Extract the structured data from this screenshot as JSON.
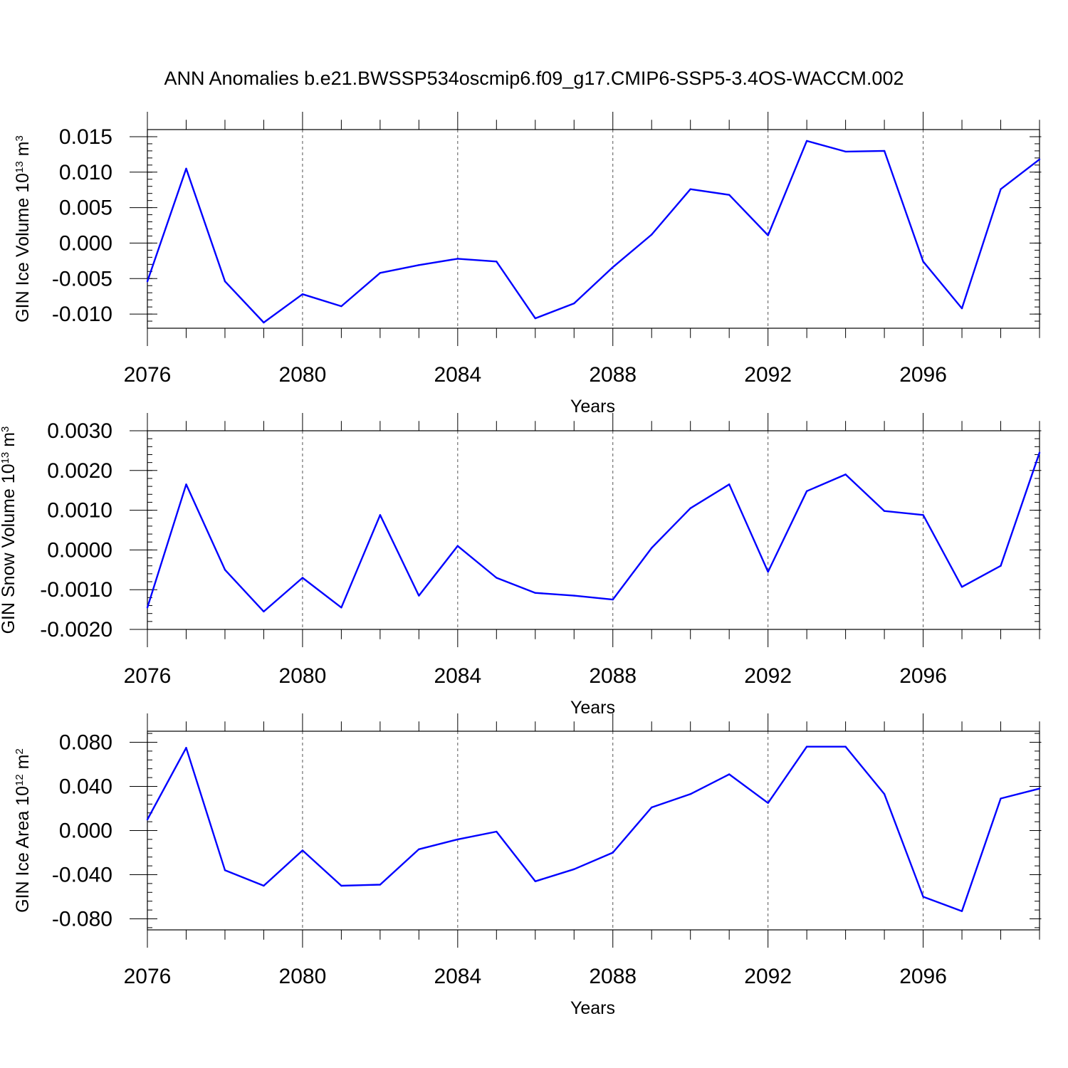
{
  "title": "ANN Anomalies b.e21.BWSSP534oscmip6.f09_g17.CMIP6-SSP5-3.4OS-WACCM.002",
  "colors": {
    "line": "#0000ff",
    "axes": "#000000",
    "grid": "#555555",
    "background": "#ffffff"
  },
  "chart_data": [
    {
      "type": "line",
      "name": "ice-volume",
      "ylabel_main": "GIN Ice Volume 10",
      "ylabel_exp": "13",
      "ylabel_unit": " m",
      "ylabel_unit_exp": "3",
      "xlabel": "Years",
      "xlim": [
        2076,
        2099
      ],
      "ylim": [
        -0.012,
        0.016
      ],
      "xticks": [
        2076,
        2080,
        2084,
        2088,
        2092,
        2096
      ],
      "xtick_labels": [
        "2076",
        "2080",
        "2084",
        "2088",
        "2092",
        "2096"
      ],
      "yticks": [
        -0.01,
        -0.005,
        0.0,
        0.005,
        0.01,
        0.015
      ],
      "ytick_labels": [
        "-0.010",
        "-0.005",
        "0.000",
        "0.005",
        "0.010",
        "0.015"
      ],
      "y_minor_step": 0.001,
      "grid": "vertical dashed at major x ticks",
      "x": [
        2076,
        2077,
        2078,
        2079,
        2080,
        2081,
        2082,
        2083,
        2084,
        2085,
        2086,
        2087,
        2088,
        2089,
        2090,
        2091,
        2092,
        2093,
        2094,
        2095,
        2096,
        2097,
        2098,
        2099
      ],
      "y": [
        -0.0054,
        0.0105,
        -0.0054,
        -0.0112,
        -0.0072,
        -0.0089,
        -0.0042,
        -0.0031,
        -0.0022,
        -0.0026,
        -0.0106,
        -0.0085,
        -0.0034,
        0.0012,
        0.0076,
        0.0068,
        0.0011,
        0.0144,
        0.0129,
        0.013,
        -0.0026,
        -0.0092,
        0.0076,
        0.0118
      ]
    },
    {
      "type": "line",
      "name": "snow-volume",
      "ylabel_main": "GIN Snow Volume 10",
      "ylabel_exp": "13",
      "ylabel_unit": " m",
      "ylabel_unit_exp": "3",
      "xlabel": "Years",
      "xlim": [
        2076,
        2099
      ],
      "ylim": [
        -0.002,
        0.003
      ],
      "xticks": [
        2076,
        2080,
        2084,
        2088,
        2092,
        2096
      ],
      "xtick_labels": [
        "2076",
        "2080",
        "2084",
        "2088",
        "2092",
        "2096"
      ],
      "yticks": [
        -0.002,
        -0.001,
        0.0,
        0.001,
        0.002,
        0.003
      ],
      "ytick_labels": [
        "-0.0020",
        "-0.0010",
        "0.0000",
        "0.0010",
        "0.0020",
        "0.0030"
      ],
      "y_minor_step": 0.0002,
      "grid": "vertical dashed at major x ticks",
      "x": [
        2076,
        2077,
        2078,
        2079,
        2080,
        2081,
        2082,
        2083,
        2084,
        2085,
        2086,
        2087,
        2088,
        2089,
        2090,
        2091,
        2092,
        2093,
        2094,
        2095,
        2096,
        2097,
        2098,
        2099
      ],
      "y": [
        -0.00145,
        0.00165,
        -0.0005,
        -0.00155,
        -0.0007,
        -0.00145,
        0.00088,
        -0.00115,
        0.0001,
        -0.0007,
        -0.00108,
        -0.00115,
        -0.00125,
        5e-05,
        0.00105,
        0.00165,
        -0.00055,
        0.00148,
        0.0019,
        0.00098,
        0.00088,
        -0.00093,
        -0.0004,
        0.00245
      ]
    },
    {
      "type": "line",
      "name": "ice-area",
      "ylabel_main": "GIN Ice Area 10",
      "ylabel_exp": "12",
      "ylabel_unit": " m",
      "ylabel_unit_exp": "2",
      "xlabel": "Years",
      "xlim": [
        2076,
        2099
      ],
      "ylim": [
        -0.09,
        0.09
      ],
      "xticks": [
        2076,
        2080,
        2084,
        2088,
        2092,
        2096
      ],
      "xtick_labels": [
        "2076",
        "2080",
        "2084",
        "2088",
        "2092",
        "2096"
      ],
      "yticks": [
        -0.08,
        -0.04,
        0.0,
        0.04,
        0.08
      ],
      "ytick_labels": [
        "-0.080",
        "-0.040",
        "0.000",
        "0.040",
        "0.080"
      ],
      "y_minor_step": 0.008,
      "grid": "vertical dashed at major x ticks",
      "x": [
        2076,
        2077,
        2078,
        2079,
        2080,
        2081,
        2082,
        2083,
        2084,
        2085,
        2086,
        2087,
        2088,
        2089,
        2090,
        2091,
        2092,
        2093,
        2094,
        2095,
        2096,
        2097,
        2098,
        2099
      ],
      "y": [
        0.01,
        0.075,
        -0.036,
        -0.05,
        -0.018,
        -0.05,
        -0.049,
        -0.017,
        -0.008,
        -0.001,
        -0.046,
        -0.035,
        -0.02,
        0.021,
        0.033,
        0.051,
        0.025,
        0.076,
        0.076,
        0.033,
        -0.06,
        -0.073,
        0.029,
        0.038
      ]
    }
  ]
}
